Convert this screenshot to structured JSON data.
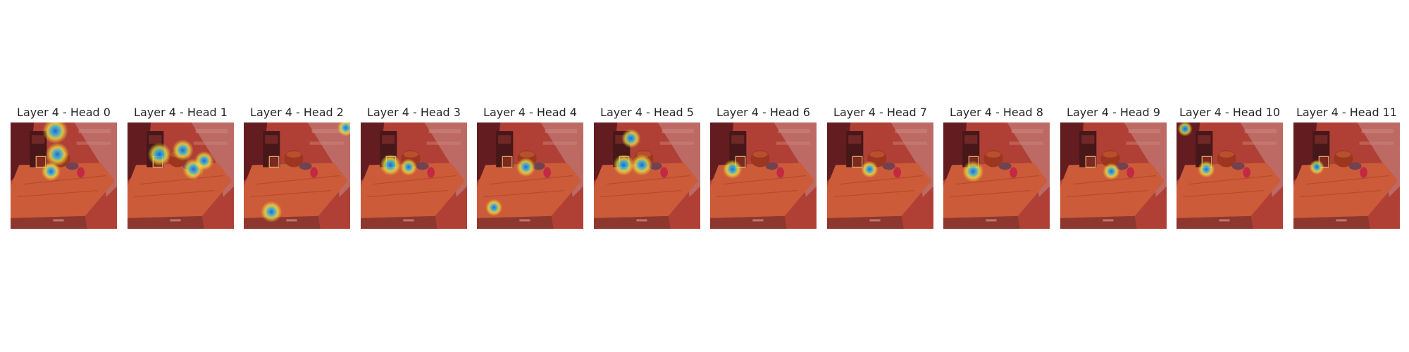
{
  "panels": [
    {
      "title": "Layer 4 - Head 0",
      "hotspots": [
        {
          "cx": 42,
          "cy": 8,
          "r": 12
        },
        {
          "cx": 44,
          "cy": 30,
          "r": 11
        },
        {
          "cx": 38,
          "cy": 46,
          "r": 9
        }
      ]
    },
    {
      "title": "Layer 4 - Head 1",
      "hotspots": [
        {
          "cx": 30,
          "cy": 30,
          "r": 11
        },
        {
          "cx": 52,
          "cy": 26,
          "r": 10
        },
        {
          "cx": 62,
          "cy": 44,
          "r": 10
        },
        {
          "cx": 72,
          "cy": 36,
          "r": 9
        }
      ]
    },
    {
      "title": "Layer 4 - Head 2",
      "hotspots": [
        {
          "cx": 96,
          "cy": 5,
          "r": 8
        },
        {
          "cx": 26,
          "cy": 84,
          "r": 10
        }
      ]
    },
    {
      "title": "Layer 4 - Head 3",
      "hotspots": [
        {
          "cx": 28,
          "cy": 40,
          "r": 10
        },
        {
          "cx": 45,
          "cy": 42,
          "r": 8
        }
      ]
    },
    {
      "title": "Layer 4 - Head 4",
      "hotspots": [
        {
          "cx": 46,
          "cy": 42,
          "r": 9
        },
        {
          "cx": 16,
          "cy": 80,
          "r": 8
        }
      ]
    },
    {
      "title": "Layer 4 - Head 5",
      "hotspots": [
        {
          "cx": 35,
          "cy": 15,
          "r": 9
        },
        {
          "cx": 28,
          "cy": 40,
          "r": 10
        },
        {
          "cx": 45,
          "cy": 40,
          "r": 10
        }
      ]
    },
    {
      "title": "Layer 4 - Head 6",
      "hotspots": [
        {
          "cx": 21,
          "cy": 44,
          "r": 9
        }
      ]
    },
    {
      "title": "Layer 4 - Head 7",
      "hotspots": [
        {
          "cx": 40,
          "cy": 44,
          "r": 8
        }
      ]
    },
    {
      "title": "Layer 4 - Head 8",
      "hotspots": [
        {
          "cx": 28,
          "cy": 46,
          "r": 10
        }
      ]
    },
    {
      "title": "Layer 4 - Head 9",
      "hotspots": [
        {
          "cx": 48,
          "cy": 46,
          "r": 8
        }
      ]
    },
    {
      "title": "Layer 4 - Head 10",
      "hotspots": [
        {
          "cx": 8,
          "cy": 6,
          "r": 7
        },
        {
          "cx": 28,
          "cy": 44,
          "r": 8
        }
      ]
    },
    {
      "title": "Layer 4 - Head 11",
      "hotspots": [
        {
          "cx": 22,
          "cy": 42,
          "r": 7
        }
      ]
    }
  ],
  "colors": {
    "background": "#ffffff",
    "title_text": "#262626",
    "scene_overlay": "#c8463a",
    "scene_dark": "#5a1d1f",
    "attention_low": "#c03a2a",
    "attention_mid": "#f3e640",
    "attention_high": "#2b5fd8"
  },
  "icons": {
    "panel_image": "attention-heatmap-overlay"
  }
}
